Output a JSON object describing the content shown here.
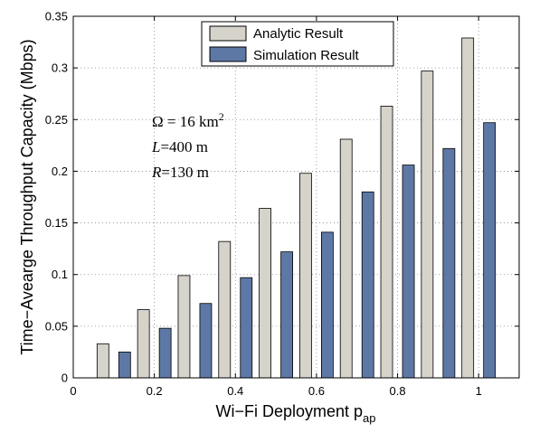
{
  "chart_data": {
    "type": "bar",
    "title": "",
    "xlabel": "Wi−Fi Deployment p",
    "xlabel_sub": "ap",
    "ylabel": "Time−Avearge Throughput Capacity (Mbps)",
    "xlim": [
      0,
      1.1
    ],
    "ylim": [
      0,
      0.35
    ],
    "x_ticks": [
      0,
      0.2,
      0.4,
      0.6,
      0.8,
      1
    ],
    "x_tick_labels": [
      "0",
      "0.2",
      "0.4",
      "0.6",
      "0.8",
      "1"
    ],
    "y_ticks": [
      0,
      0.05,
      0.1,
      0.15,
      0.2,
      0.25,
      0.3,
      0.35
    ],
    "y_tick_labels": [
      "0",
      "0.05",
      "0.1",
      "0.15",
      "0.2",
      "0.25",
      "0.3",
      "0.35"
    ],
    "grid": true,
    "legend_position": "top-right",
    "x": [
      0.1,
      0.2,
      0.3,
      0.4,
      0.5,
      0.6,
      0.7,
      0.8,
      0.9,
      1.0
    ],
    "series": [
      {
        "name": "Analytic Result",
        "color": "#d6d3cb",
        "values": [
          0.033,
          0.066,
          0.099,
          0.132,
          0.164,
          0.198,
          0.231,
          0.263,
          0.297,
          0.329
        ]
      },
      {
        "name": "Simulation Result",
        "color": "#5e78a6",
        "values": [
          0.025,
          0.048,
          0.072,
          0.097,
          0.122,
          0.141,
          0.18,
          0.206,
          0.222,
          0.247
        ]
      }
    ],
    "annotations": {
      "line1": {
        "sym": "Ω",
        "text": " = 16 km",
        "sup": "2"
      },
      "line2": {
        "sym": "L",
        "text": "=400 m"
      },
      "line3": {
        "sym": "R",
        "text": "=130 m"
      }
    }
  }
}
